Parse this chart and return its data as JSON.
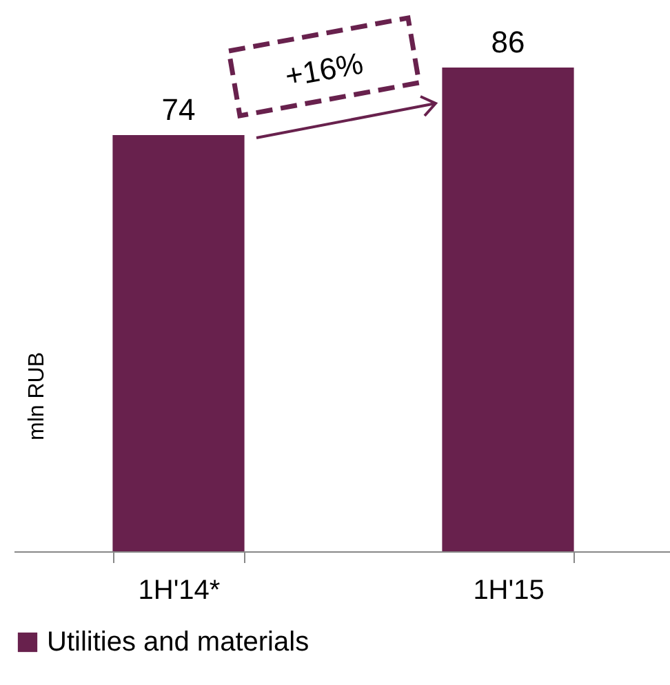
{
  "chart_data": {
    "type": "bar",
    "categories": [
      "1H'14*",
      "1H'15"
    ],
    "series": [
      {
        "name": "Utilities and materials",
        "color": "#68214d",
        "values": [
          74,
          86
        ]
      }
    ],
    "ylabel": "mln RUB",
    "data_labels": true,
    "legend": "bottom",
    "grid": false,
    "annotations": [
      "+16%"
    ]
  }
}
